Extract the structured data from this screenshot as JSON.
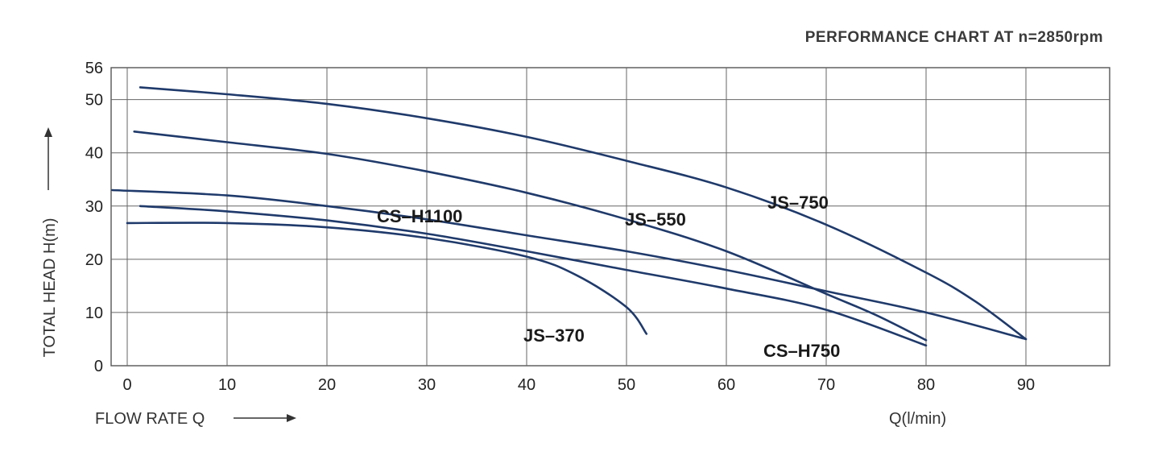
{
  "chart_data": {
    "type": "line",
    "title": "PERFORMANCE CHART AT n=2850rpm",
    "xlabel": "FLOW RATE Q",
    "xunit": "Q(l/min)",
    "ylabel": "TOTAL HEAD H(m)",
    "xlim": [
      0,
      100
    ],
    "ylim": [
      0,
      56
    ],
    "xticks": [
      "0",
      "10",
      "20",
      "30",
      "40",
      "50",
      "60",
      "70",
      "80",
      "90"
    ],
    "yticks": [
      "0",
      "10",
      "20",
      "30",
      "40",
      "50",
      "56"
    ],
    "grid": true,
    "line_color": "#1f3a6b",
    "series": [
      {
        "name": "JS-750",
        "points": [
          [
            1.3,
            52.3
          ],
          [
            10,
            51.0
          ],
          [
            20,
            49.2
          ],
          [
            30,
            46.5
          ],
          [
            40,
            43.0
          ],
          [
            50,
            38.5
          ],
          [
            60,
            33.5
          ],
          [
            70,
            26.5
          ],
          [
            80,
            17.5
          ],
          [
            85,
            12.0
          ],
          [
            90,
            5.0
          ]
        ]
      },
      {
        "name": "JS-550",
        "points": [
          [
            0.7,
            44.0
          ],
          [
            10,
            42.0
          ],
          [
            20,
            39.8
          ],
          [
            30,
            36.5
          ],
          [
            40,
            32.5
          ],
          [
            50,
            27.5
          ],
          [
            60,
            21.5
          ],
          [
            70,
            13.5
          ],
          [
            75,
            9.5
          ],
          [
            80,
            4.8
          ]
        ]
      },
      {
        "name": "CS-H1100",
        "points": [
          [
            -1.5,
            33.0
          ],
          [
            10,
            32.0
          ],
          [
            20,
            30.0
          ],
          [
            30,
            27.5
          ],
          [
            40,
            24.5
          ],
          [
            50,
            21.5
          ],
          [
            60,
            18.0
          ],
          [
            70,
            14.0
          ],
          [
            80,
            10.0
          ],
          [
            90,
            5.0
          ]
        ]
      },
      {
        "name": "CS-H750",
        "points": [
          [
            1.3,
            30.0
          ],
          [
            10,
            29.0
          ],
          [
            20,
            27.3
          ],
          [
            30,
            24.8
          ],
          [
            40,
            21.5
          ],
          [
            50,
            18.0
          ],
          [
            60,
            14.5
          ],
          [
            70,
            10.5
          ],
          [
            80,
            3.8
          ]
        ]
      },
      {
        "name": "JS-370",
        "points": [
          [
            0,
            26.8
          ],
          [
            10,
            26.8
          ],
          [
            20,
            26.0
          ],
          [
            30,
            24.0
          ],
          [
            40,
            20.5
          ],
          [
            45,
            17.0
          ],
          [
            50,
            11.0
          ],
          [
            52,
            6.0
          ]
        ]
      }
    ]
  },
  "labels": {
    "JS-750": "JS–750",
    "JS-550": "JS–550",
    "CS-H1100": "CS–H1100",
    "CS-H750": "CS–H750",
    "JS-370": "JS–370"
  }
}
